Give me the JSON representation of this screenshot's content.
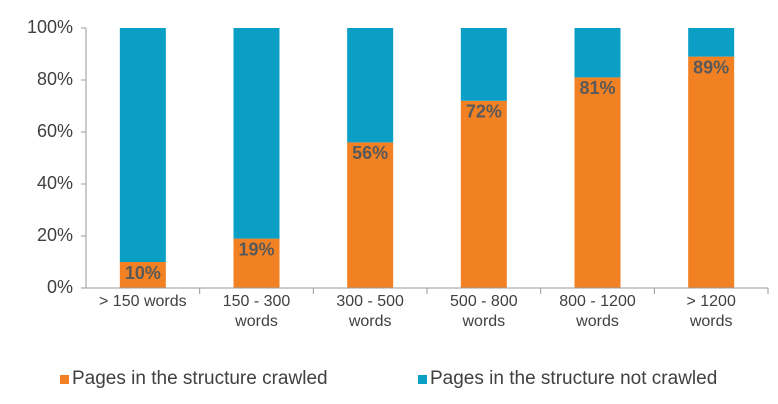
{
  "chart_data": {
    "type": "stacked_bar",
    "categories": [
      "> 150 words",
      "150 - 300 words",
      "300 - 500 words",
      "500 - 800 words",
      "800 - 1200 words",
      "> 1200 words"
    ],
    "series": [
      {
        "name": "Pages in the structure crawled",
        "color": "#f28124",
        "values": [
          10,
          19,
          56,
          72,
          81,
          89
        ],
        "value_labels": [
          "10%",
          "19%",
          "56%",
          "72%",
          "81%",
          "89%"
        ]
      },
      {
        "name": "Pages in the structure not crawled",
        "color": "#0b9fc6",
        "values": [
          90,
          81,
          44,
          28,
          19,
          11
        ]
      }
    ],
    "ylim": [
      0,
      100
    ],
    "yticks": [
      {
        "value": 0,
        "label": "0%"
      },
      {
        "value": 20,
        "label": "20%"
      },
      {
        "value": 40,
        "label": "40%"
      },
      {
        "value": 60,
        "label": "60%"
      },
      {
        "value": 80,
        "label": "80%"
      },
      {
        "value": 100,
        "label": "100%"
      }
    ],
    "grid": false,
    "legend": "bottom"
  }
}
